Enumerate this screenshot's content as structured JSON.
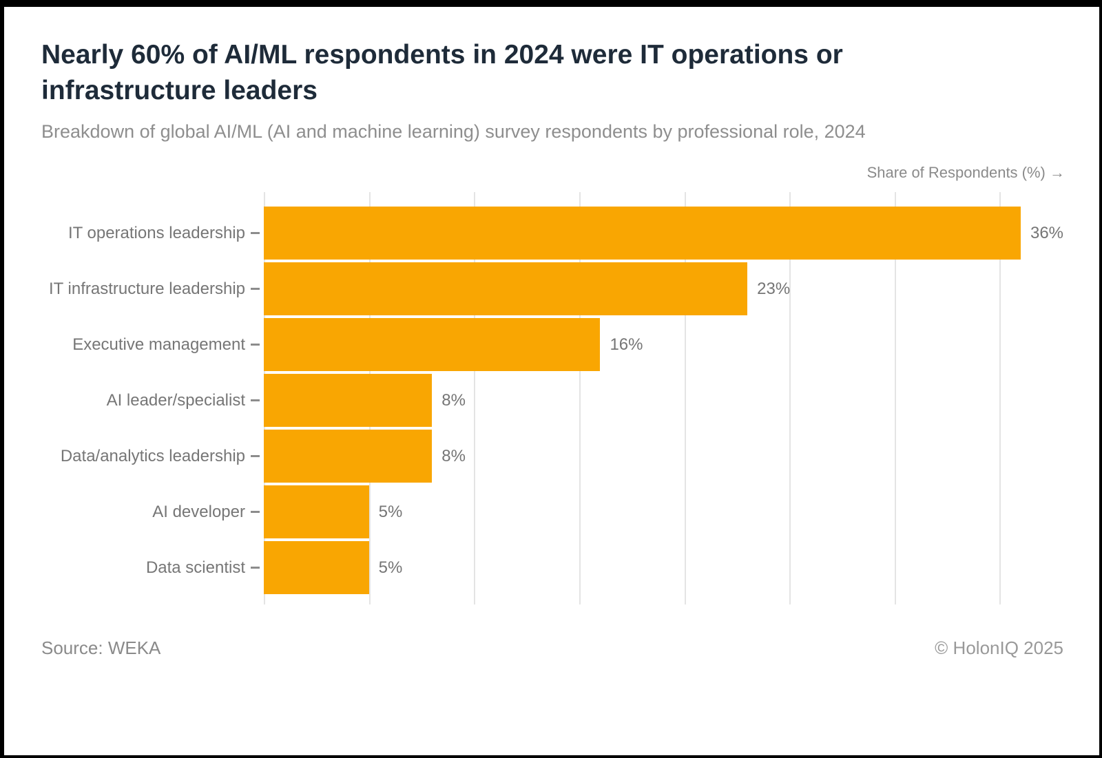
{
  "header": {
    "title": "Nearly 60% of AI/ML respondents in 2024 were IT operations or infrastructure leaders",
    "subtitle": "Breakdown of global AI/ML (AI and machine learning) survey respondents by professional role, 2024"
  },
  "chart_data": {
    "type": "bar",
    "orientation": "horizontal",
    "title": "Nearly 60% of AI/ML respondents in 2024 were IT operations or infrastructure leaders",
    "subtitle": "Breakdown of global AI/ML (AI and machine learning) survey respondents by professional role, 2024",
    "xlabel": "Share of Respondents (%) →",
    "categories": [
      "IT operations leadership",
      "IT infrastructure leadership",
      "Executive management",
      "AI leader/specialist",
      "Data/analytics leadership",
      "AI developer",
      "Data scientist"
    ],
    "values": [
      36,
      23,
      16,
      8,
      8,
      5,
      5
    ],
    "value_labels": [
      "36%",
      "23%",
      "16%",
      "8%",
      "8%",
      "5%",
      "5%"
    ],
    "xlim": [
      0,
      37.9
    ],
    "gridlines": [
      0,
      5,
      10,
      15,
      20,
      25,
      30,
      35
    ],
    "grid": true,
    "legend": false,
    "bar_color": "#F9A602"
  },
  "footer": {
    "source": "Source: WEKA",
    "copyright": "© HolonIQ 2025"
  },
  "colors": {
    "bar": "#F9A602",
    "title_text": "#1e2b39",
    "muted_text": "#8e8e8e",
    "gridline": "#e4e4e4",
    "frame_border": "#000000"
  }
}
